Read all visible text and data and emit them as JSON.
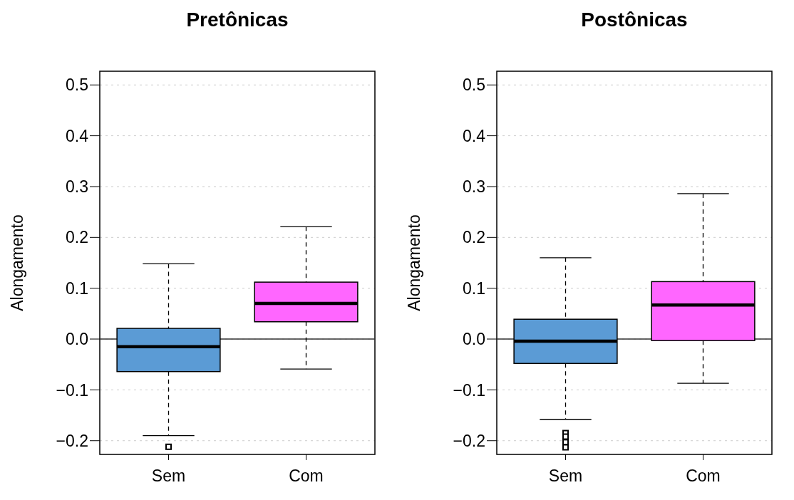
{
  "chart_data": [
    {
      "type": "box",
      "title": "Pretônicas",
      "ylabel": "Alongamento",
      "categories": [
        "Sem",
        "Com"
      ],
      "colors": [
        "#5b9bd5",
        "#ff66ff"
      ],
      "boxes": [
        {
          "low": -0.19,
          "q1": -0.064,
          "median": -0.015,
          "q3": 0.021,
          "high": 0.148,
          "outliers": [
            -0.212
          ]
        },
        {
          "low": -0.059,
          "q1": 0.034,
          "median": 0.07,
          "q3": 0.112,
          "high": 0.221
        }
      ],
      "ylim": [
        -0.227,
        0.527
      ],
      "yticks": [
        {
          "value": -0.2,
          "label": "−0.2"
        },
        {
          "value": -0.1,
          "label": "−0.1"
        },
        {
          "value": 0,
          "label": "0.0"
        },
        0.1,
        0.2,
        0.3,
        0.4,
        0.5
      ],
      "grid": "y",
      "marker": "square",
      "ref_lines": [
        {
          "axis": "y",
          "value": 0,
          "label": null,
          "color": "#333333"
        }
      ]
    },
    {
      "type": "box",
      "title": "Postônicas",
      "ylabel": "Alongamento",
      "categories": [
        "Sem",
        "Com"
      ],
      "colors": [
        "#5b9bd5",
        "#ff66ff"
      ],
      "boxes": [
        {
          "low": -0.158,
          "q1": -0.048,
          "median": -0.004,
          "q3": 0.039,
          "high": 0.16,
          "outliers": [
            -0.185,
            -0.192,
            -0.203,
            -0.213
          ]
        },
        {
          "low": -0.087,
          "q1": -0.003,
          "median": 0.067,
          "q3": 0.113,
          "high": 0.286
        }
      ],
      "ylim": [
        -0.227,
        0.527
      ],
      "yticks": [
        {
          "value": -0.2,
          "label": "−0.2"
        },
        {
          "value": -0.1,
          "label": "−0.1"
        },
        {
          "value": 0,
          "label": "0.0"
        },
        0.1,
        0.2,
        0.3,
        0.4,
        0.5
      ],
      "grid": "y",
      "marker": "square",
      "ref_lines": [
        {
          "axis": "y",
          "value": 0,
          "label": null,
          "color": "#333333"
        }
      ]
    }
  ]
}
